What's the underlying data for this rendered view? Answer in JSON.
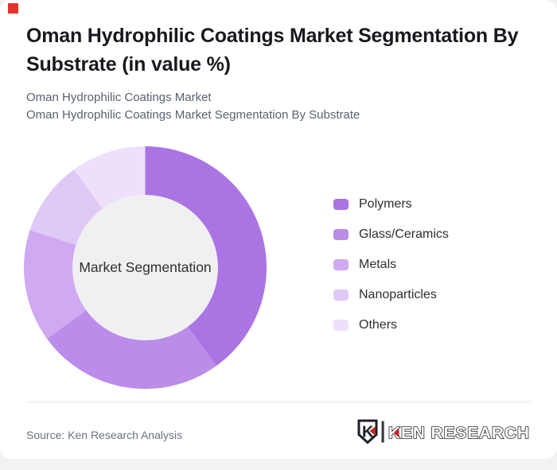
{
  "header": {
    "title": "Oman Hydrophilic Coatings Market Segmentation By Substrate (in value %)",
    "subtitle_line1": "Oman Hydrophilic Coatings Market",
    "subtitle_line2": "Oman Hydrophilic Coatings Market Segmentation By Substrate"
  },
  "chart_data": {
    "type": "pie",
    "donut": true,
    "title": "Oman Hydrophilic Coatings Market Segmentation By Substrate (in value %)",
    "center_label": "Market Segmentation",
    "unit": "value %",
    "categories": [
      "Polymers",
      "Glass/Ceramics",
      "Metals",
      "Nanoparticles",
      "Others"
    ],
    "values": [
      40,
      25,
      15,
      10,
      10
    ],
    "colors": [
      "#ab74e3",
      "#bb8cea",
      "#cfa9f1",
      "#dfc9f7",
      "#eee0fc"
    ],
    "start_angle_deg": 0,
    "inner_radius_ratio": 0.6,
    "legend_position": "right",
    "hole_color": "#f0f0f1"
  },
  "footer": {
    "source": "Source: Ken Research Analysis",
    "logo_mark_letter": "K",
    "logo_text": "KEN RESEARCH",
    "logo_accent_color": "#c8231e",
    "logo_dark_color": "#1c2127"
  },
  "accent_square_color": "#e6322b"
}
